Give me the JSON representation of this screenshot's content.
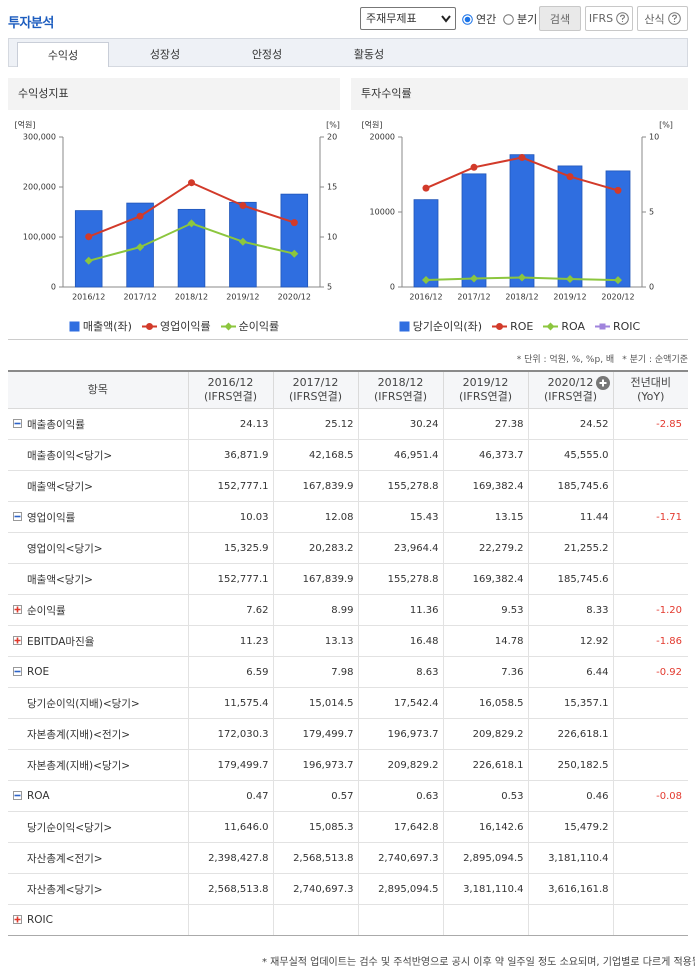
{
  "header": {
    "title": "투자분석",
    "select": "주재무제표",
    "radios": [
      {
        "label": "연간",
        "checked": true
      },
      {
        "label": "분기",
        "checked": false
      }
    ],
    "buttons": [
      "검색",
      "IFRS",
      "산식"
    ]
  },
  "tabs": {
    "items": [
      "수익성",
      "성장성",
      "안정성",
      "활동성"
    ],
    "active": 0
  },
  "chart_data": [
    {
      "type": "bar",
      "title": "수익성지표",
      "ylabel": "[억원]",
      "y2label": "[%]",
      "categories": [
        "2016/12",
        "2017/12",
        "2018/12",
        "2019/12",
        "2020/12"
      ],
      "ylim": [
        0,
        300000
      ],
      "yticks": [
        0,
        {
          "value": 100000,
          "label": "100,000"
        },
        {
          "value": 200000,
          "label": "200,000"
        },
        {
          "value": 300000,
          "label": "300,000"
        }
      ],
      "y2lim": [
        5,
        20
      ],
      "y2ticks": [
        5,
        10,
        15,
        20
      ],
      "grid": false,
      "series": [
        {
          "name": "매출액(좌)",
          "type": "bar",
          "color": "#2f6ee0",
          "values": [
            152777.1,
            167839.9,
            155278.8,
            169382.4,
            185745.6
          ]
        },
        {
          "name": "영업이익률",
          "type": "line",
          "axis": "y2",
          "marker": "circle",
          "color": "#d23a2a",
          "values": [
            10.03,
            12.08,
            15.43,
            13.15,
            11.44
          ]
        },
        {
          "name": "순이익률",
          "type": "line",
          "axis": "y2",
          "marker": "diamond",
          "color": "#8cc63e",
          "values": [
            7.62,
            8.99,
            11.36,
            9.53,
            8.33
          ]
        }
      ]
    },
    {
      "type": "bar",
      "title": "투자수익률",
      "ylabel": "[억원]",
      "y2label": "[%]",
      "categories": [
        "2016/12",
        "2017/12",
        "2018/12",
        "2019/12",
        "2020/12"
      ],
      "ylim": [
        0,
        20000
      ],
      "yticks": [
        0,
        10000,
        20000
      ],
      "y2lim": [
        0,
        10
      ],
      "y2ticks": [
        0,
        5,
        10
      ],
      "grid": false,
      "series": [
        {
          "name": "당기순이익(좌)",
          "type": "bar",
          "color": "#2f6ee0",
          "values": [
            11646.0,
            15085.3,
            17642.8,
            16142.6,
            15479.2
          ]
        },
        {
          "name": "ROE",
          "type": "line",
          "axis": "y2",
          "marker": "circle",
          "color": "#d23a2a",
          "values": [
            6.59,
            7.98,
            8.63,
            7.36,
            6.44
          ]
        },
        {
          "name": "ROA",
          "type": "line",
          "axis": "y2",
          "marker": "diamond",
          "color": "#8cc63e",
          "values": [
            0.47,
            0.57,
            0.63,
            0.53,
            0.46
          ]
        },
        {
          "name": "ROIC",
          "type": "line",
          "axis": "y2",
          "marker": "square",
          "color": "#a084dc",
          "values": [
            null,
            null,
            null,
            null,
            null
          ]
        }
      ]
    }
  ],
  "notes": [
    "* 단위 : 억원, %, %p, 배",
    "* 분기 : 순액기준"
  ],
  "table": {
    "header": "항목",
    "periods": [
      {
        "period": "2016/12",
        "basis": "(IFRS연결)"
      },
      {
        "period": "2017/12",
        "basis": "(IFRS연결)"
      },
      {
        "period": "2018/12",
        "basis": "(IFRS연결)"
      },
      {
        "period": "2019/12",
        "basis": "(IFRS연결)"
      },
      {
        "period": "2020/12",
        "basis": "(IFRS연결)"
      }
    ],
    "yoy_header": [
      "전년대비",
      "(YoY)"
    ],
    "rows": [
      {
        "label": "매출총이익률",
        "toggle": "minus",
        "values": [
          "24.13",
          "25.12",
          "30.24",
          "27.38",
          "24.52"
        ],
        "yoy": "-2.85"
      },
      {
        "label": "매출총이익<당기>",
        "values": [
          "36,871.9",
          "42,168.5",
          "46,951.4",
          "46,373.7",
          "45,555.0"
        ]
      },
      {
        "label": "매출액<당기>",
        "values": [
          "152,777.1",
          "167,839.9",
          "155,278.8",
          "169,382.4",
          "185,745.6"
        ]
      },
      {
        "label": "영업이익률",
        "toggle": "minus",
        "values": [
          "10.03",
          "12.08",
          "15.43",
          "13.15",
          "11.44"
        ],
        "yoy": "-1.71"
      },
      {
        "label": "영업이익<당기>",
        "values": [
          "15,325.9",
          "20,283.2",
          "23,964.4",
          "22,279.2",
          "21,255.2"
        ]
      },
      {
        "label": "매출액<당기>",
        "values": [
          "152,777.1",
          "167,839.9",
          "155,278.8",
          "169,382.4",
          "185,745.6"
        ]
      },
      {
        "label": "순이익률",
        "toggle": "plus",
        "values": [
          "7.62",
          "8.99",
          "11.36",
          "9.53",
          "8.33"
        ],
        "yoy": "-1.20"
      },
      {
        "label": "EBITDA마진율",
        "toggle": "plus",
        "values": [
          "11.23",
          "13.13",
          "16.48",
          "14.78",
          "12.92"
        ],
        "yoy": "-1.86"
      },
      {
        "label": "ROE",
        "toggle": "minus",
        "values": [
          "6.59",
          "7.98",
          "8.63",
          "7.36",
          "6.44"
        ],
        "yoy": "-0.92"
      },
      {
        "label": "당기순이익(지배)<당기>",
        "values": [
          "11,575.4",
          "15,014.5",
          "17,542.4",
          "16,058.5",
          "15,357.1"
        ]
      },
      {
        "label": "자본총계(지배)<전기>",
        "values": [
          "172,030.3",
          "179,499.7",
          "196,973.7",
          "209,829.2",
          "226,618.1"
        ]
      },
      {
        "label": "자본총계(지배)<당기>",
        "values": [
          "179,499.7",
          "196,973.7",
          "209,829.2",
          "226,618.1",
          "250,182.5"
        ]
      },
      {
        "label": "ROA",
        "toggle": "minus",
        "values": [
          "0.47",
          "0.57",
          "0.63",
          "0.53",
          "0.46"
        ],
        "yoy": "-0.08"
      },
      {
        "label": "당기순이익<당기>",
        "values": [
          "11,646.0",
          "15,085.3",
          "17,642.8",
          "16,142.6",
          "15,479.2"
        ]
      },
      {
        "label": "자산총계<전기>",
        "values": [
          "2,398,427.8",
          "2,568,513.8",
          "2,740,697.3",
          "2,895,094.5",
          "3,181,110.4"
        ]
      },
      {
        "label": "자산총계<당기>",
        "values": [
          "2,568,513.8",
          "2,740,697.3",
          "2,895,094.5",
          "3,181,110.4",
          "3,616,161.8"
        ]
      },
      {
        "label": "ROIC",
        "toggle": "plus"
      }
    ]
  },
  "footer": "* 재무실적 업데이트는 검수 및 주석반영으로 공시 이후 약 일주일 정도 소요되며, 기업별로 다르게 적용될"
}
